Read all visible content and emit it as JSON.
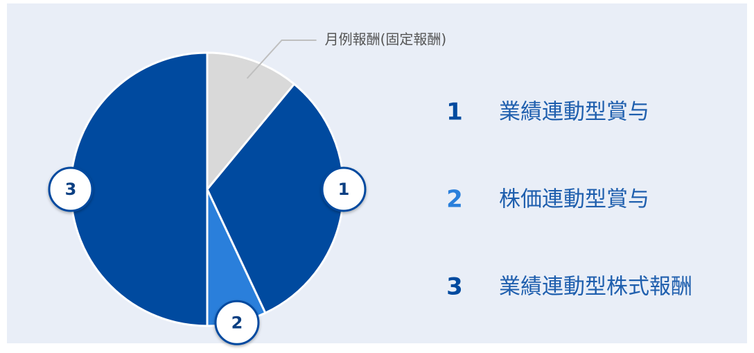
{
  "chart_data": {
    "type": "pie",
    "categories": [
      "月例報酬(固定報酬)",
      "業績連動型賞与",
      "株価連動型賞与",
      "業績連動型株式報酬"
    ],
    "values": [
      11,
      32,
      7,
      50
    ],
    "colors": [
      "#d9d9d9",
      "#004a9f",
      "#2a7fdb",
      "#004a9f"
    ],
    "badges": [
      null,
      "1",
      "2",
      "3"
    ]
  }
}
